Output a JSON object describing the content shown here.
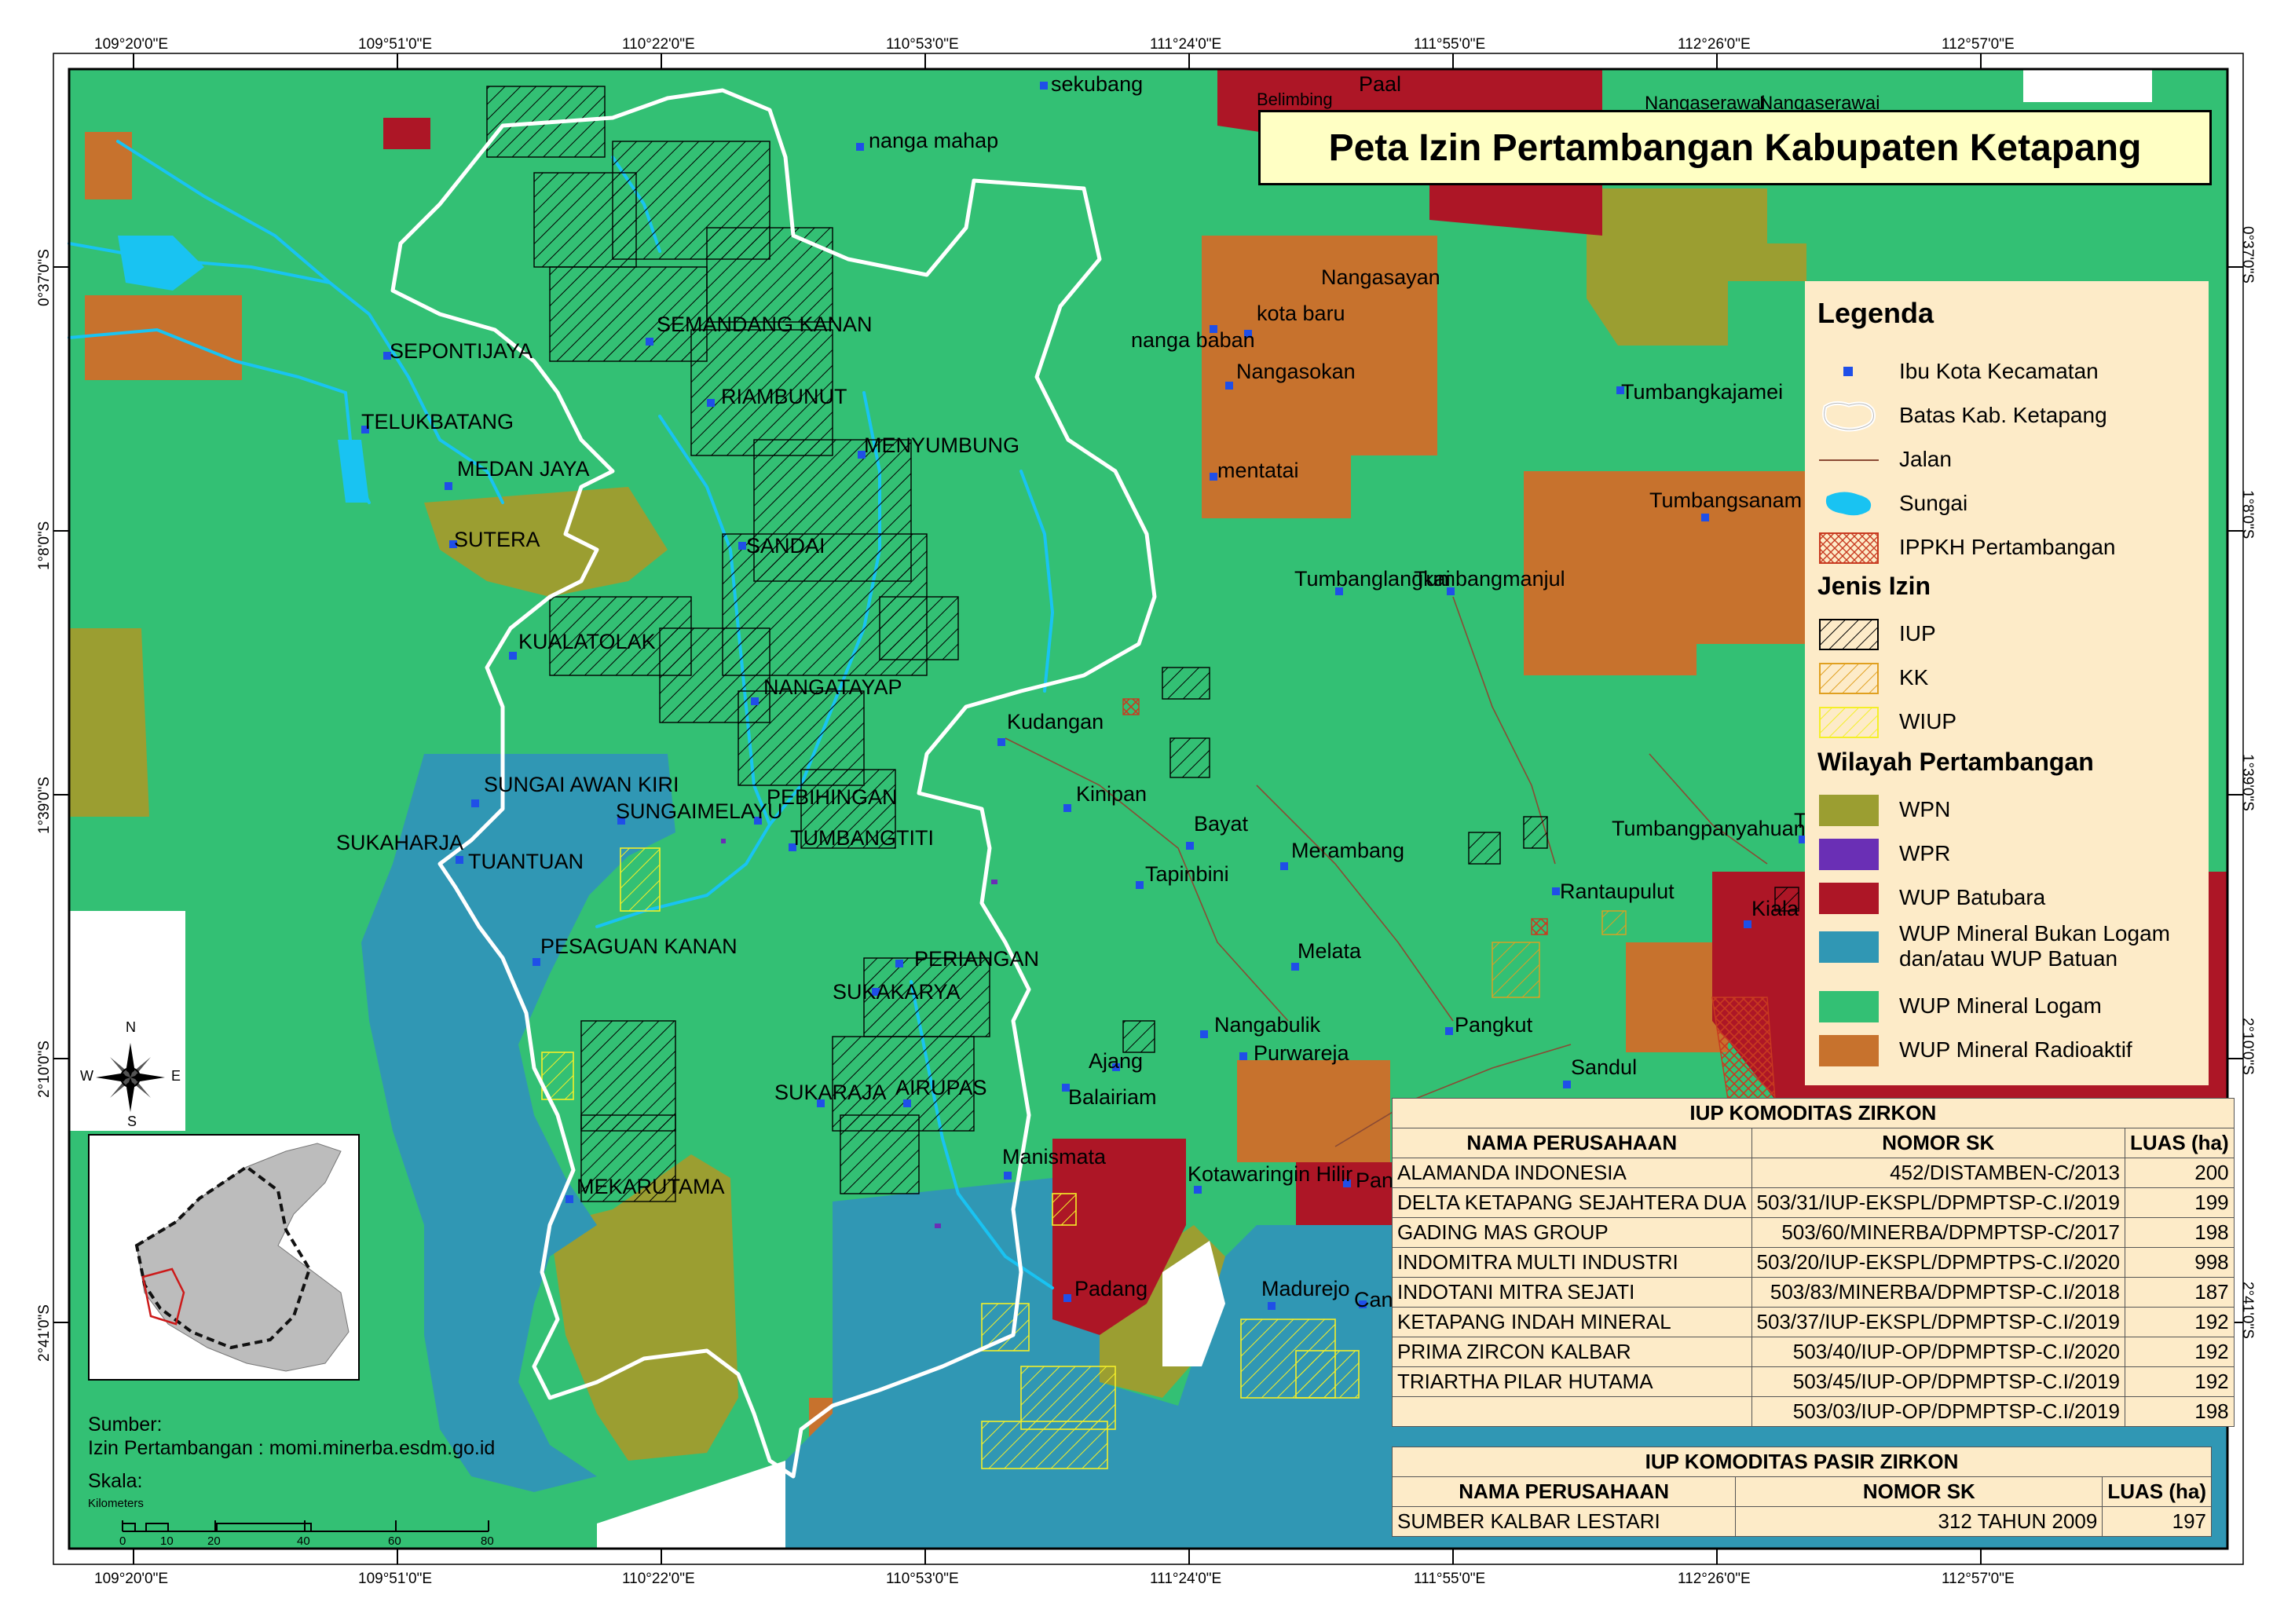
{
  "title": "Peta Izin Pertambangan Kabupaten Ketapang",
  "colors": {
    "WPN": "#9b9e31",
    "WPR": "#6a2fb5",
    "WUP_Batubara": "#ad1626",
    "WUP_Mineral_Bukan_Logam": "#3097b4",
    "WUP_Mineral_Logam": "#33c074",
    "WUP_Mineral_Radioaktif": "#c7722d",
    "sungai": "#19c3f2",
    "batas": "#ffffff",
    "legend_bg": "#fdebc8",
    "title_bg": "#ffffc4"
  },
  "coordinates": {
    "top": [
      "109°20'0\"E",
      "109°51'0\"E",
      "110°22'0\"E",
      "110°53'0\"E",
      "111°24'0\"E",
      "111°55'0\"E",
      "112°26'0\"E",
      "112°57'0\"E"
    ],
    "bottom": [
      "109°20'0\"E",
      "109°51'0\"E",
      "110°22'0\"E",
      "110°53'0\"E",
      "111°24'0\"E",
      "111°55'0\"E",
      "112°26'0\"E",
      "112°57'0\"E"
    ],
    "left": [
      "0°37'0\"S",
      "1°8'0\"S",
      "1°39'0\"S",
      "2°10'0\"S",
      "2°41'0\"S"
    ],
    "right": [
      "0°37'0\"S",
      "1°8'0\"S",
      "1°39'0\"S",
      "2°10'0\"S",
      "2°41'0\"S"
    ]
  },
  "places": [
    "sekubang",
    "Paal",
    "Belimbing",
    "Nangaserawai",
    "Nangaserawai",
    "nanga mahap",
    "Nangasayan",
    "kota baru",
    "nanga baban",
    "Nangasokan",
    "SEMANDANG KANAN",
    "SEPONTIJAYA",
    "RIAMBUNUT",
    "Tumbangkajamei",
    "TELUKBATANG",
    "MENYUMBUNG",
    "mentatai",
    "MEDAN JAYA",
    "Tumbangsanam",
    "SUTERA",
    "SANDAI",
    "Tumbanglangkai",
    "Tumbangmanjul",
    "KUALATOLAK",
    "NANGATAYAP",
    "Kudangan",
    "SUNGAI AWAN KIRI",
    "SUNGAIMELAYU",
    "PEBIHINGAN",
    "Kinipan",
    "Bayat",
    "SUKAHARJA",
    "TUANTUAN",
    "TUMBANGTITI",
    "Merambang",
    "Tumbangpanyahuan",
    "Te",
    "Tapinbini",
    "Rantaupulut",
    "Kiala",
    "PESAGUAN KANAN",
    "PERIANGAN",
    "Melata",
    "SUKAKARYA",
    "Pangkut",
    "Nangabulik",
    "Purwareja",
    "Ajang",
    "Sandul",
    "SUKARAJA",
    "AIRUPAS",
    "Balairiam",
    "Manismata",
    "Kotawaringin Hilir",
    "Pan",
    "MEKARUTAMA",
    "Padang",
    "Madurejo",
    "Can"
  ],
  "legend": {
    "heading": "Legenda",
    "items": [
      "Ibu Kota Kecamatan",
      "Batas Kab. Ketapang",
      "Jalan",
      "Sungai",
      "IPPKH Pertambangan"
    ],
    "jenis_heading": "Jenis Izin",
    "jenis": [
      "IUP",
      "KK",
      "WIUP"
    ],
    "wilayah_heading": "Wilayah Pertambangan",
    "wilayah": [
      "WPN",
      "WPR",
      "WUP Batubara",
      "WUP Mineral Bukan Logam",
      "dan/atau WUP Batuan",
      "WUP Mineral Logam",
      "WUP Mineral Radioaktif"
    ]
  },
  "table_zirkon": {
    "caption": "IUP KOMODITAS ZIRKON",
    "headers": [
      "NAMA PERUSAHAAN",
      "NOMOR SK",
      "LUAS (ha)"
    ],
    "rows": [
      [
        "ALAMANDA INDONESIA",
        "452/DISTAMBEN-C/2013",
        "200"
      ],
      [
        "DELTA KETAPANG SEJAHTERA DUA",
        "503/31/IUP-EKSPL/DPMPTSP-C.I/2019",
        "199"
      ],
      [
        "GADING MAS GROUP",
        "503/60/MINERBA/DPMPTSP-C/2017",
        "198"
      ],
      [
        "INDOMITRA MULTI INDUSTRI",
        "503/20/IUP-EKSPL/DPMPTPS-C.I/2020",
        "998"
      ],
      [
        "INDOTANI MITRA SEJATI",
        "503/83/MINERBA/DPMPTSP-C.I/2018",
        "187"
      ],
      [
        "KETAPANG INDAH MINERAL",
        "503/37/IUP-EKSPL/DPMPTSP-C.I/2019",
        "192"
      ],
      [
        "PRIMA ZIRCON KALBAR",
        "503/40/IUP-OP/DPMPTSP-C.I/2020",
        "192"
      ],
      [
        "TRIARTHA PILAR HUTAMA",
        "503/45/IUP-OP/DPMPTSP-C.I/2019",
        "192"
      ],
      [
        "",
        "503/03/IUP-OP/DPMPTSP-C.I/2019",
        "198"
      ]
    ]
  },
  "table_pasir": {
    "caption": "IUP KOMODITAS PASIR ZIRKON",
    "headers": [
      "NAMA PERUSAHAAN",
      "NOMOR SK",
      "LUAS (ha)"
    ],
    "rows": [
      [
        "SUMBER KALBAR LESTARI",
        "312 TAHUN 2009",
        "197"
      ]
    ]
  },
  "source": {
    "label": "Sumber:",
    "text": "Izin Pertambangan : momi.minerba.esdm.go.id"
  },
  "scale": {
    "label": "Skala:",
    "unit": "Kilometers",
    "ticks": [
      "0",
      "10",
      "20",
      "40",
      "60",
      "80"
    ]
  },
  "compass": {
    "n": "N",
    "s": "S",
    "e": "E",
    "w": "W"
  }
}
